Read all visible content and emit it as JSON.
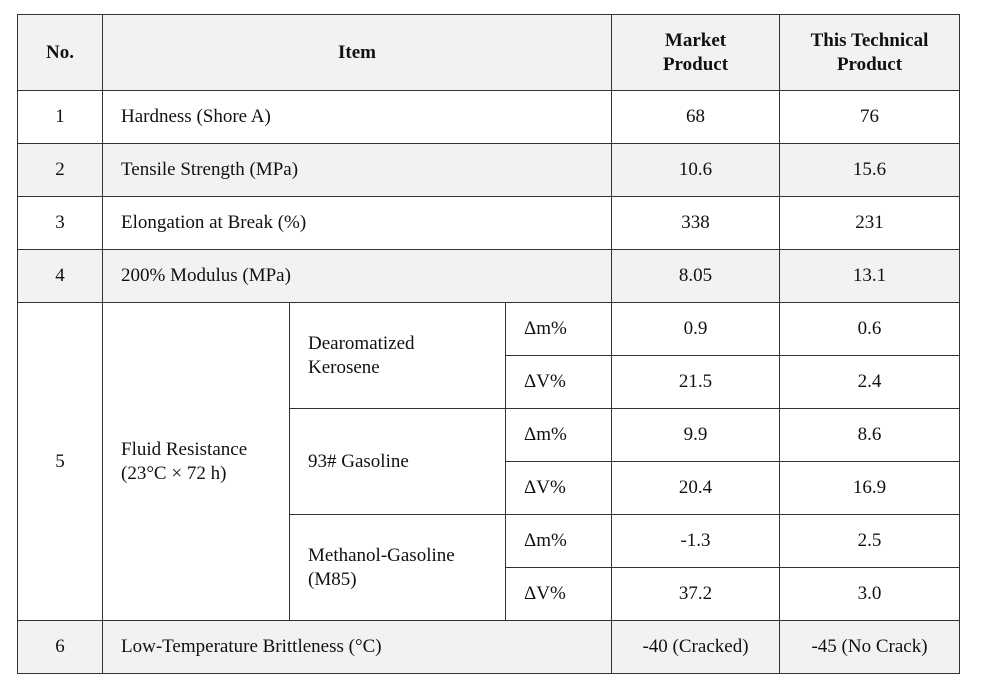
{
  "headers": {
    "no": "No.",
    "item": "Item",
    "market": "Market\nProduct",
    "tech": "This Technical\nProduct"
  },
  "rows": [
    {
      "no": "1",
      "item": "Hardness (Shore A)",
      "market": "68",
      "tech": "76"
    },
    {
      "no": "2",
      "item": "Tensile Strength (MPa)",
      "market": "10.6",
      "tech": "15.6"
    },
    {
      "no": "3",
      "item": "Elongation at Break (%)",
      "market": "338",
      "tech": "231"
    },
    {
      "no": "4",
      "item": "200% Modulus (MPa)",
      "market": "8.05",
      "tech": "13.1"
    }
  ],
  "fluid": {
    "no": "5",
    "label_line1": "Fluid Resistance",
    "label_line2": "(23°C × 72 h)",
    "groups": [
      {
        "medium_line1": "Dearomatized",
        "medium_line2": "Kerosene",
        "rows": [
          {
            "param": "Δm%",
            "market": "0.9",
            "tech": "0.6"
          },
          {
            "param": "ΔV%",
            "market": "21.5",
            "tech": "2.4"
          }
        ]
      },
      {
        "medium_line1": "93# Gasoline",
        "medium_line2": "",
        "rows": [
          {
            "param": "Δm%",
            "market": "9.9",
            "tech": "8.6"
          },
          {
            "param": "ΔV%",
            "market": "20.4",
            "tech": "16.9"
          }
        ]
      },
      {
        "medium_line1": "Methanol-Gasoline",
        "medium_line2": "(M85)",
        "rows": [
          {
            "param": "Δm%",
            "market": "-1.3",
            "tech": "2.5"
          },
          {
            "param": "ΔV%",
            "market": "37.2",
            "tech": "3.0"
          }
        ]
      }
    ]
  },
  "last_row": {
    "no": "6",
    "item": "Low-Temperature Brittleness (°C)",
    "market": "-40 (Cracked)",
    "tech": "-45 (No Crack)"
  }
}
